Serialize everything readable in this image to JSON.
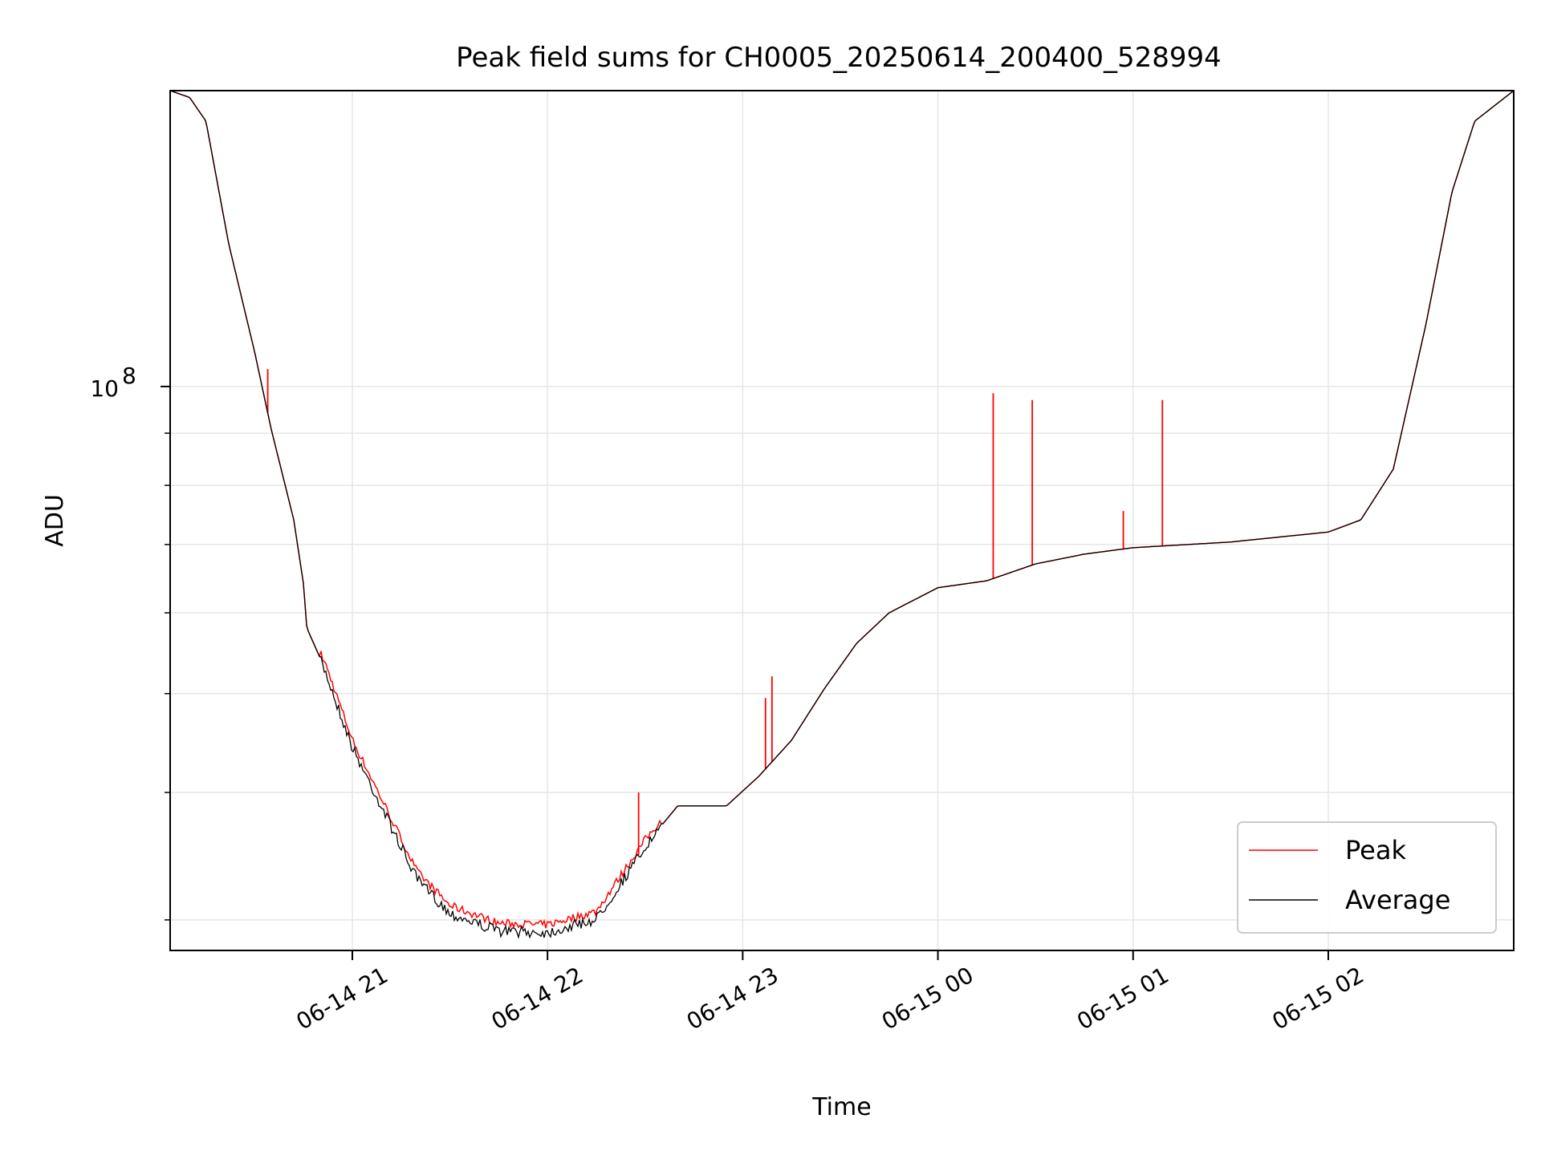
{
  "chart_data": {
    "type": "line",
    "title": "Peak field sums for CH0005_20250614_200400_528994",
    "xlabel": "Time",
    "ylabel": "ADU",
    "x_axis": {
      "type": "time",
      "range": [
        "2025-06-14 20:04",
        "2025-06-15 02:57"
      ],
      "ticks": [
        {
          "value": "2025-06-14 21:00",
          "label": "06-14 21"
        },
        {
          "value": "2025-06-14 22:00",
          "label": "06-14 22"
        },
        {
          "value": "2025-06-14 23:00",
          "label": "06-14 23"
        },
        {
          "value": "2025-06-15 00:00",
          "label": "06-15 00"
        },
        {
          "value": "2025-06-15 01:00",
          "label": "06-15 01"
        },
        {
          "value": "2025-06-15 02:00",
          "label": "06-15 02"
        }
      ]
    },
    "y_axis": {
      "scale": "log",
      "range": [
        28000000,
        195000000
      ],
      "major_ticks": [
        {
          "value": 100000000,
          "label": "10",
          "exponent": "8"
        }
      ],
      "minor_ticks": [
        30000000,
        40000000,
        50000000,
        60000000,
        70000000,
        80000000,
        90000000,
        200000000
      ]
    },
    "grid": true,
    "legend": {
      "position": "lower-right"
    },
    "series": [
      {
        "name": "Average",
        "color": "#000000",
        "points": [
          [
            "2025-06-14 20:04",
            195000000
          ],
          [
            "2025-06-14 20:10",
            192000000
          ],
          [
            "2025-06-14 20:15",
            182000000
          ],
          [
            "2025-06-14 20:22",
            138000000
          ],
          [
            "2025-06-14 20:30",
            108000000
          ],
          [
            "2025-06-14 20:35",
            91000000
          ],
          [
            "2025-06-14 20:42",
            74000000
          ],
          [
            "2025-06-14 20:45",
            64000000
          ],
          [
            "2025-06-14 20:46",
            58000000
          ],
          [
            "2025-06-14 20:52",
            52500000
          ],
          [
            "2025-06-14 21:00",
            44500000
          ],
          [
            "2025-06-14 21:08",
            39500000
          ],
          [
            "2025-06-14 21:20",
            33000000
          ],
          [
            "2025-06-14 21:30",
            30600000
          ],
          [
            "2025-06-14 21:45",
            29400000
          ],
          [
            "2025-06-14 22:00",
            29300000
          ],
          [
            "2025-06-14 22:15",
            30200000
          ],
          [
            "2025-06-14 22:30",
            35500000
          ],
          [
            "2025-06-14 22:40",
            38800000
          ],
          [
            "2025-06-14 22:55",
            38800000
          ],
          [
            "2025-06-14 23:05",
            41500000
          ],
          [
            "2025-06-14 23:15",
            45000000
          ],
          [
            "2025-06-14 23:25",
            50500000
          ],
          [
            "2025-06-14 23:35",
            56000000
          ],
          [
            "2025-06-14 23:45",
            60000000
          ],
          [
            "2025-06-15 00:00",
            63500000
          ],
          [
            "2025-06-15 00:15",
            64500000
          ],
          [
            "2025-06-15 00:30",
            67000000
          ],
          [
            "2025-06-15 00:45",
            68500000
          ],
          [
            "2025-06-15 01:00",
            69500000
          ],
          [
            "2025-06-15 01:30",
            70400000
          ],
          [
            "2025-06-15 02:00",
            72000000
          ],
          [
            "2025-06-15 02:10",
            74000000
          ],
          [
            "2025-06-15 02:20",
            83000000
          ],
          [
            "2025-06-15 02:30",
            115000000
          ],
          [
            "2025-06-15 02:38",
            155000000
          ],
          [
            "2025-06-15 02:45",
            182000000
          ],
          [
            "2025-06-15 02:57",
            195000000
          ]
        ]
      },
      {
        "name": "Peak",
        "color": "#ff0000",
        "spikes": [
          [
            "2025-06-14 20:34",
            104000000
          ],
          [
            "2025-06-14 22:28",
            40000000
          ],
          [
            "2025-06-14 23:07",
            49500000
          ],
          [
            "2025-06-14 23:09",
            52000000
          ],
          [
            "2025-06-15 00:17",
            98500000
          ],
          [
            "2025-06-15 00:29",
            97000000
          ],
          [
            "2025-06-15 00:57",
            75500000
          ],
          [
            "2025-06-15 01:09",
            97000000
          ]
        ]
      }
    ]
  }
}
